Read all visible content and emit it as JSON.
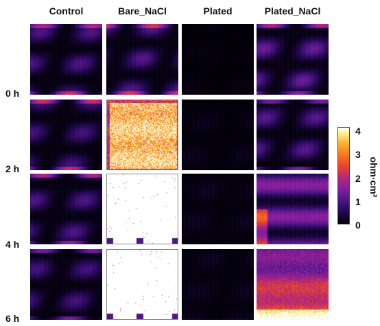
{
  "columns": [
    "Control",
    "Bare_NaCl",
    "Plated",
    "Plated_NaCl"
  ],
  "rows": [
    "0 h",
    "2 h",
    "4 h",
    "6 h"
  ],
  "colorbar": {
    "ticks": [
      "4",
      "3",
      "2",
      "1",
      "0"
    ],
    "unit": "ohm·cm²",
    "range": [
      0,
      4
    ],
    "colormap": "inferno-like (black → purple → red → orange → yellow → white)"
  },
  "panels": [
    [
      {
        "mean": 0.55,
        "pattern": "bands",
        "border": false
      },
      {
        "mean": 0.6,
        "pattern": "bands",
        "border": false
      },
      {
        "mean": 0.08,
        "pattern": "dark",
        "border": false
      },
      {
        "mean": 0.7,
        "pattern": "bands",
        "border": false
      }
    ],
    [
      {
        "mean": 0.5,
        "pattern": "bands",
        "border": false
      },
      {
        "mean": 3.3,
        "pattern": "speckle-hot",
        "border": true
      },
      {
        "mean": 0.12,
        "pattern": "dark",
        "border": false
      },
      {
        "mean": 0.6,
        "pattern": "bands",
        "border": false
      }
    ],
    [
      {
        "mean": 0.55,
        "pattern": "bands",
        "border": false
      },
      {
        "mean": 4.0,
        "pattern": "saturated",
        "border": true
      },
      {
        "mean": 0.15,
        "pattern": "dark",
        "border": false
      },
      {
        "mean": 0.9,
        "pattern": "bands-strong",
        "border": false
      }
    ],
    [
      {
        "mean": 0.5,
        "pattern": "bands",
        "border": false
      },
      {
        "mean": 4.0,
        "pattern": "saturated",
        "border": true
      },
      {
        "mean": 0.15,
        "pattern": "dark",
        "border": false
      },
      {
        "mean": 1.6,
        "pattern": "hot-lower",
        "border": false
      }
    ]
  ]
}
